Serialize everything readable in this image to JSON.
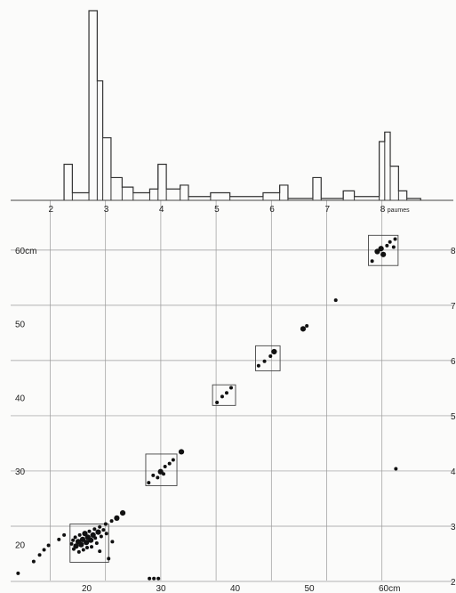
{
  "chart_data": [
    {
      "type": "histogram",
      "x_range": [
        1.5,
        9.2
      ],
      "y_range": [
        0,
        100
      ],
      "bins": [
        {
          "x0": 2.25,
          "x1": 2.4,
          "y": 19
        },
        {
          "x0": 2.4,
          "x1": 2.7,
          "y": 4
        },
        {
          "x0": 2.7,
          "x1": 2.85,
          "y": 100
        },
        {
          "x0": 2.85,
          "x1": 2.95,
          "y": 63
        },
        {
          "x0": 2.95,
          "x1": 3.1,
          "y": 33
        },
        {
          "x0": 3.1,
          "x1": 3.3,
          "y": 12
        },
        {
          "x0": 3.3,
          "x1": 3.5,
          "y": 7
        },
        {
          "x0": 3.5,
          "x1": 3.8,
          "y": 4
        },
        {
          "x0": 3.8,
          "x1": 3.95,
          "y": 6
        },
        {
          "x0": 3.95,
          "x1": 4.1,
          "y": 19
        },
        {
          "x0": 4.1,
          "x1": 4.35,
          "y": 6
        },
        {
          "x0": 4.35,
          "x1": 4.5,
          "y": 8
        },
        {
          "x0": 4.5,
          "x1": 4.9,
          "y": 2
        },
        {
          "x0": 4.9,
          "x1": 5.25,
          "y": 4
        },
        {
          "x0": 5.25,
          "x1": 5.85,
          "y": 2
        },
        {
          "x0": 5.85,
          "x1": 6.15,
          "y": 4
        },
        {
          "x0": 6.15,
          "x1": 6.3,
          "y": 8
        },
        {
          "x0": 6.3,
          "x1": 6.75,
          "y": 1
        },
        {
          "x0": 6.75,
          "x1": 6.9,
          "y": 12
        },
        {
          "x0": 6.9,
          "x1": 7.3,
          "y": 1
        },
        {
          "x0": 7.3,
          "x1": 7.5,
          "y": 5
        },
        {
          "x0": 7.5,
          "x1": 7.95,
          "y": 2
        },
        {
          "x0": 7.95,
          "x1": 8.05,
          "y": 31
        },
        {
          "x0": 8.05,
          "x1": 8.15,
          "y": 36
        },
        {
          "x0": 8.15,
          "x1": 8.3,
          "y": 18
        },
        {
          "x0": 8.3,
          "x1": 8.45,
          "y": 5
        },
        {
          "x0": 8.45,
          "x1": 8.7,
          "y": 1
        }
      ]
    },
    {
      "type": "scatter",
      "x_axis": {
        "range": [
          10,
          65
        ],
        "ticks": [
          20,
          30,
          40,
          50,
          60
        ],
        "tick_labels": [
          "20",
          "30",
          "40",
          "50",
          "60cm"
        ],
        "position": "bottom"
      },
      "y_axis": {
        "range": [
          15,
          62
        ],
        "ticks": [
          20,
          30,
          40,
          50,
          60
        ],
        "tick_labels": [
          "20",
          "30",
          "40",
          "50",
          "60cm"
        ],
        "position": "left"
      },
      "top_axis": {
        "range": [
          1.5,
          9.2
        ],
        "ticks": [
          2,
          3,
          4,
          5,
          6,
          7,
          8
        ],
        "tick_labels": [
          "2",
          "3",
          "4",
          "5",
          "6",
          "7",
          "8"
        ],
        "unit": "paumes"
      },
      "right_axis": {
        "ticks": [
          2,
          3,
          4,
          5,
          6,
          7,
          8
        ],
        "tick_labels": [
          "2",
          "3",
          "4",
          "5",
          "6",
          "7",
          "8"
        ]
      },
      "grid": true,
      "boxes": [
        {
          "x": [
            17.7,
            22.9
          ],
          "y": [
            17.6,
            22.8
          ]
        },
        {
          "x": [
            27.9,
            32.1
          ],
          "y": [
            28.0,
            32.3
          ]
        },
        {
          "x": [
            36.9,
            40.0
          ],
          "y": [
            38.9,
            41.7
          ]
        },
        {
          "x": [
            42.7,
            46.0
          ],
          "y": [
            43.6,
            47.0
          ]
        },
        {
          "x": [
            57.9,
            61.9
          ],
          "y": [
            57.9,
            62.0
          ]
        }
      ],
      "points": [
        {
          "x": 10.7,
          "y": 16.1,
          "s": 1
        },
        {
          "x": 12.8,
          "y": 17.7,
          "s": 1
        },
        {
          "x": 13.6,
          "y": 18.6,
          "s": 1
        },
        {
          "x": 14.2,
          "y": 19.3,
          "s": 1
        },
        {
          "x": 14.8,
          "y": 19.9,
          "s": 1
        },
        {
          "x": 16.2,
          "y": 20.7,
          "s": 1
        },
        {
          "x": 16.9,
          "y": 21.3,
          "s": 1
        },
        {
          "x": 17.9,
          "y": 20.1,
          "s": 1
        },
        {
          "x": 18.1,
          "y": 20.6,
          "s": 1
        },
        {
          "x": 18.2,
          "y": 19.4,
          "s": 1
        },
        {
          "x": 18.4,
          "y": 21.0,
          "s": 1
        },
        {
          "x": 18.5,
          "y": 19.8,
          "s": 2
        },
        {
          "x": 18.8,
          "y": 20.4,
          "s": 2
        },
        {
          "x": 18.9,
          "y": 19.0,
          "s": 1
        },
        {
          "x": 19.0,
          "y": 21.3,
          "s": 1
        },
        {
          "x": 19.2,
          "y": 20.0,
          "s": 2
        },
        {
          "x": 19.4,
          "y": 20.7,
          "s": 2
        },
        {
          "x": 19.5,
          "y": 19.3,
          "s": 1
        },
        {
          "x": 19.7,
          "y": 21.5,
          "s": 2
        },
        {
          "x": 19.9,
          "y": 20.3,
          "s": 2
        },
        {
          "x": 20.0,
          "y": 19.6,
          "s": 1
        },
        {
          "x": 20.1,
          "y": 21.0,
          "s": 2
        },
        {
          "x": 20.3,
          "y": 21.8,
          "s": 1
        },
        {
          "x": 20.5,
          "y": 20.6,
          "s": 2
        },
        {
          "x": 20.6,
          "y": 19.7,
          "s": 1
        },
        {
          "x": 20.8,
          "y": 21.3,
          "s": 2
        },
        {
          "x": 21.0,
          "y": 22.1,
          "s": 1
        },
        {
          "x": 21.1,
          "y": 20.9,
          "s": 1
        },
        {
          "x": 21.3,
          "y": 20.2,
          "s": 1
        },
        {
          "x": 21.5,
          "y": 21.7,
          "s": 2
        },
        {
          "x": 21.7,
          "y": 22.4,
          "s": 1
        },
        {
          "x": 21.9,
          "y": 21.1,
          "s": 1
        },
        {
          "x": 22.2,
          "y": 22.0,
          "s": 1
        },
        {
          "x": 22.5,
          "y": 22.8,
          "s": 1
        },
        {
          "x": 22.6,
          "y": 21.5,
          "s": 1
        },
        {
          "x": 23.3,
          "y": 23.2,
          "s": 1
        },
        {
          "x": 24.0,
          "y": 23.6,
          "s": 2
        },
        {
          "x": 24.8,
          "y": 24.3,
          "s": 2
        },
        {
          "x": 21.7,
          "y": 19.1,
          "s": 1
        },
        {
          "x": 22.9,
          "y": 18.1,
          "s": 1
        },
        {
          "x": 23.4,
          "y": 20.4,
          "s": 1
        },
        {
          "x": 28.3,
          "y": 28.4,
          "s": 1
        },
        {
          "x": 28.9,
          "y": 29.4,
          "s": 1
        },
        {
          "x": 29.5,
          "y": 29.1,
          "s": 1
        },
        {
          "x": 29.9,
          "y": 29.9,
          "s": 2
        },
        {
          "x": 30.3,
          "y": 29.6,
          "s": 1
        },
        {
          "x": 30.5,
          "y": 30.6,
          "s": 1
        },
        {
          "x": 31.1,
          "y": 31.0,
          "s": 1
        },
        {
          "x": 31.6,
          "y": 31.5,
          "s": 1
        },
        {
          "x": 32.7,
          "y": 32.6,
          "s": 2
        },
        {
          "x": 28.4,
          "y": 15.4,
          "s": 1
        },
        {
          "x": 29.0,
          "y": 15.4,
          "s": 1
        },
        {
          "x": 29.6,
          "y": 15.4,
          "s": 1
        },
        {
          "x": 37.5,
          "y": 39.3,
          "s": 1
        },
        {
          "x": 38.2,
          "y": 40.1,
          "s": 1
        },
        {
          "x": 38.8,
          "y": 40.6,
          "s": 1
        },
        {
          "x": 39.4,
          "y": 41.3,
          "s": 1
        },
        {
          "x": 43.1,
          "y": 44.3,
          "s": 1
        },
        {
          "x": 43.9,
          "y": 44.9,
          "s": 1
        },
        {
          "x": 44.7,
          "y": 45.6,
          "s": 1
        },
        {
          "x": 45.2,
          "y": 46.2,
          "s": 2
        },
        {
          "x": 49.1,
          "y": 49.3,
          "s": 2
        },
        {
          "x": 49.6,
          "y": 49.7,
          "s": 1
        },
        {
          "x": 53.5,
          "y": 53.2,
          "s": 1
        },
        {
          "x": 58.4,
          "y": 58.5,
          "s": 1
        },
        {
          "x": 59.1,
          "y": 59.8,
          "s": 2
        },
        {
          "x": 59.6,
          "y": 60.2,
          "s": 2
        },
        {
          "x": 59.9,
          "y": 59.4,
          "s": 2
        },
        {
          "x": 60.4,
          "y": 60.6,
          "s": 1
        },
        {
          "x": 60.8,
          "y": 61.1,
          "s": 1
        },
        {
          "x": 61.3,
          "y": 60.4,
          "s": 1
        },
        {
          "x": 61.5,
          "y": 61.5,
          "s": 1
        },
        {
          "x": 61.6,
          "y": 30.3,
          "s": 1
        }
      ]
    }
  ]
}
